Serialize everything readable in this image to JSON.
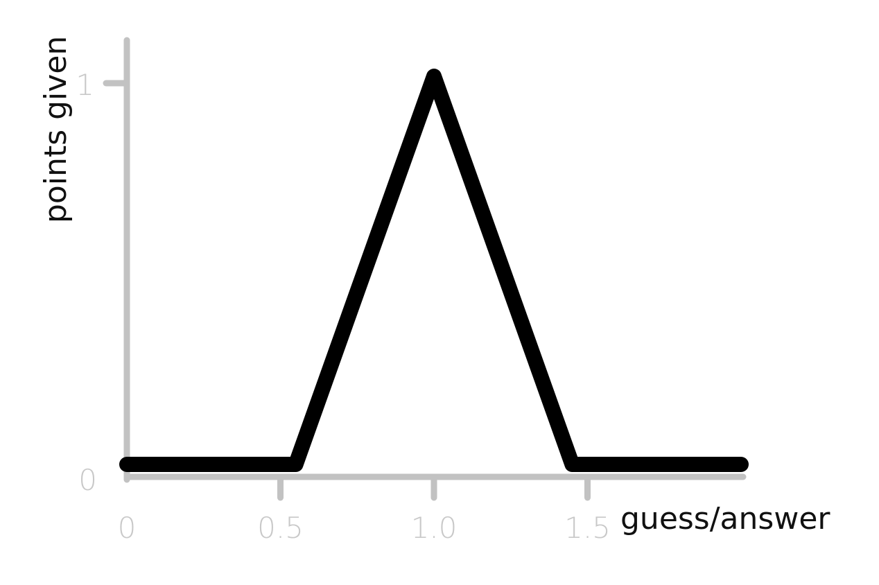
{
  "chart_data": {
    "type": "line",
    "xlabel": "guess/answer",
    "ylabel": "points given",
    "x_ticks": [
      "0",
      "0.5",
      "1.0",
      "1.5"
    ],
    "x_tick_values": [
      0,
      0.5,
      1.0,
      1.5
    ],
    "y_ticks": [
      "0",
      "1"
    ],
    "y_tick_values": [
      0,
      1
    ],
    "xlim": [
      0,
      2
    ],
    "ylim": [
      0,
      1
    ],
    "grid": false,
    "series": [
      {
        "x": [
          0,
          0.55,
          1.0,
          1.45,
          2.0
        ],
        "y": [
          0,
          0,
          1,
          0,
          0
        ]
      }
    ],
    "colors": {
      "axis": "#c2c2c2",
      "tick_label": "#c8c8c8",
      "line": "#000000",
      "title": "#111111"
    }
  }
}
